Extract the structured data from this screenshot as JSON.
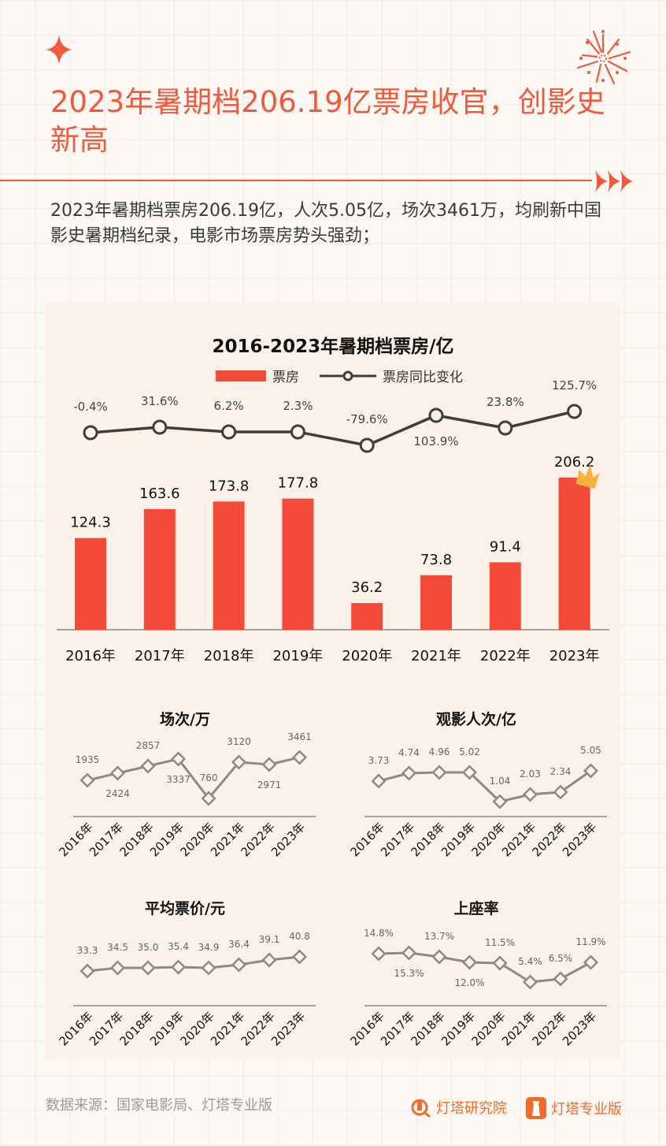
{
  "header": {
    "title": "2023年暑期档206.19亿票房收官，创影史新高",
    "subtitle": "2023年暑期档票房206.19亿，人次5.05亿，场次3461万，均刷新中国影史暑期档纪录，电影市场票房势头强劲；"
  },
  "colors": {
    "accent": "#f05a3c",
    "bar": "#f44a3a",
    "line_dark": "#3d3d3d",
    "line_gray": "#8a8a8a",
    "panel": "#fcf1e8"
  },
  "footer": {
    "source": "数据来源：国家电影局、灯塔专业版",
    "logo1": "灯塔研究院",
    "logo2": "灯塔专业版"
  },
  "chart_data": [
    {
      "type": "bar+line",
      "title": "2016-2023年暑期档票房/亿",
      "categories": [
        "2016年",
        "2017年",
        "2018年",
        "2019年",
        "2020年",
        "2021年",
        "2022年",
        "2023年"
      ],
      "legend": [
        "票房",
        "票房同比变化"
      ],
      "series": [
        {
          "name": "票房",
          "type": "bar",
          "values": [
            124.3,
            163.6,
            173.8,
            177.8,
            36.2,
            73.8,
            91.4,
            206.2
          ],
          "labels": [
            "124.3",
            "163.6",
            "173.8",
            "177.8",
            "36.2",
            "73.8",
            "91.4",
            "206.2"
          ]
        },
        {
          "name": "票房同比变化",
          "type": "line",
          "values": [
            -0.4,
            31.6,
            6.2,
            2.3,
            -79.6,
            103.9,
            23.8,
            125.7
          ],
          "labels": [
            "-0.4%",
            "31.6%",
            "6.2%",
            "2.3%",
            "-79.6%",
            "103.9%",
            "23.8%",
            "125.7%"
          ]
        }
      ],
      "annotation": "crown-icon on 2023"
    },
    {
      "type": "line",
      "title": "场次/万",
      "categories": [
        "2016年",
        "2017年",
        "2018年",
        "2019年",
        "2020年",
        "2021年",
        "2022年",
        "2023年"
      ],
      "values": [
        1935,
        2424,
        2857,
        3337,
        760,
        3120,
        2971,
        3461
      ],
      "labels": [
        "1935",
        "2424",
        "2857",
        "3337",
        "760",
        "3120",
        "2971",
        "3461"
      ]
    },
    {
      "type": "line",
      "title": "观影人次/亿",
      "categories": [
        "2016年",
        "2017年",
        "2018年",
        "2019年",
        "2020年",
        "2021年",
        "2022年",
        "2023年"
      ],
      "values": [
        3.73,
        4.74,
        4.96,
        5.02,
        1.04,
        2.03,
        2.34,
        5.05
      ],
      "labels": [
        "3.73",
        "4.74",
        "4.96",
        "5.02",
        "1.04",
        "2.03",
        "2.34",
        "5.05"
      ]
    },
    {
      "type": "line",
      "title": "平均票价/元",
      "categories": [
        "2016年",
        "2017年",
        "2018年",
        "2019年",
        "2020年",
        "2021年",
        "2022年",
        "2023年"
      ],
      "values": [
        33.3,
        34.5,
        35.0,
        35.4,
        34.9,
        36.4,
        39.1,
        40.8
      ],
      "labels": [
        "33.3",
        "34.5",
        "35.0",
        "35.4",
        "34.9",
        "36.4",
        "39.1",
        "40.8"
      ]
    },
    {
      "type": "line",
      "title": "上座率",
      "categories": [
        "2016年",
        "2017年",
        "2018年",
        "2019年",
        "2020年",
        "2021年",
        "2022年",
        "2023年"
      ],
      "values": [
        14.8,
        15.3,
        13.7,
        12.0,
        11.5,
        5.4,
        6.5,
        11.9
      ],
      "labels": [
        "14.8%",
        "15.3%",
        "13.7%",
        "12.0%",
        "11.5%",
        "5.4%",
        "6.5%",
        "11.9%"
      ]
    }
  ]
}
